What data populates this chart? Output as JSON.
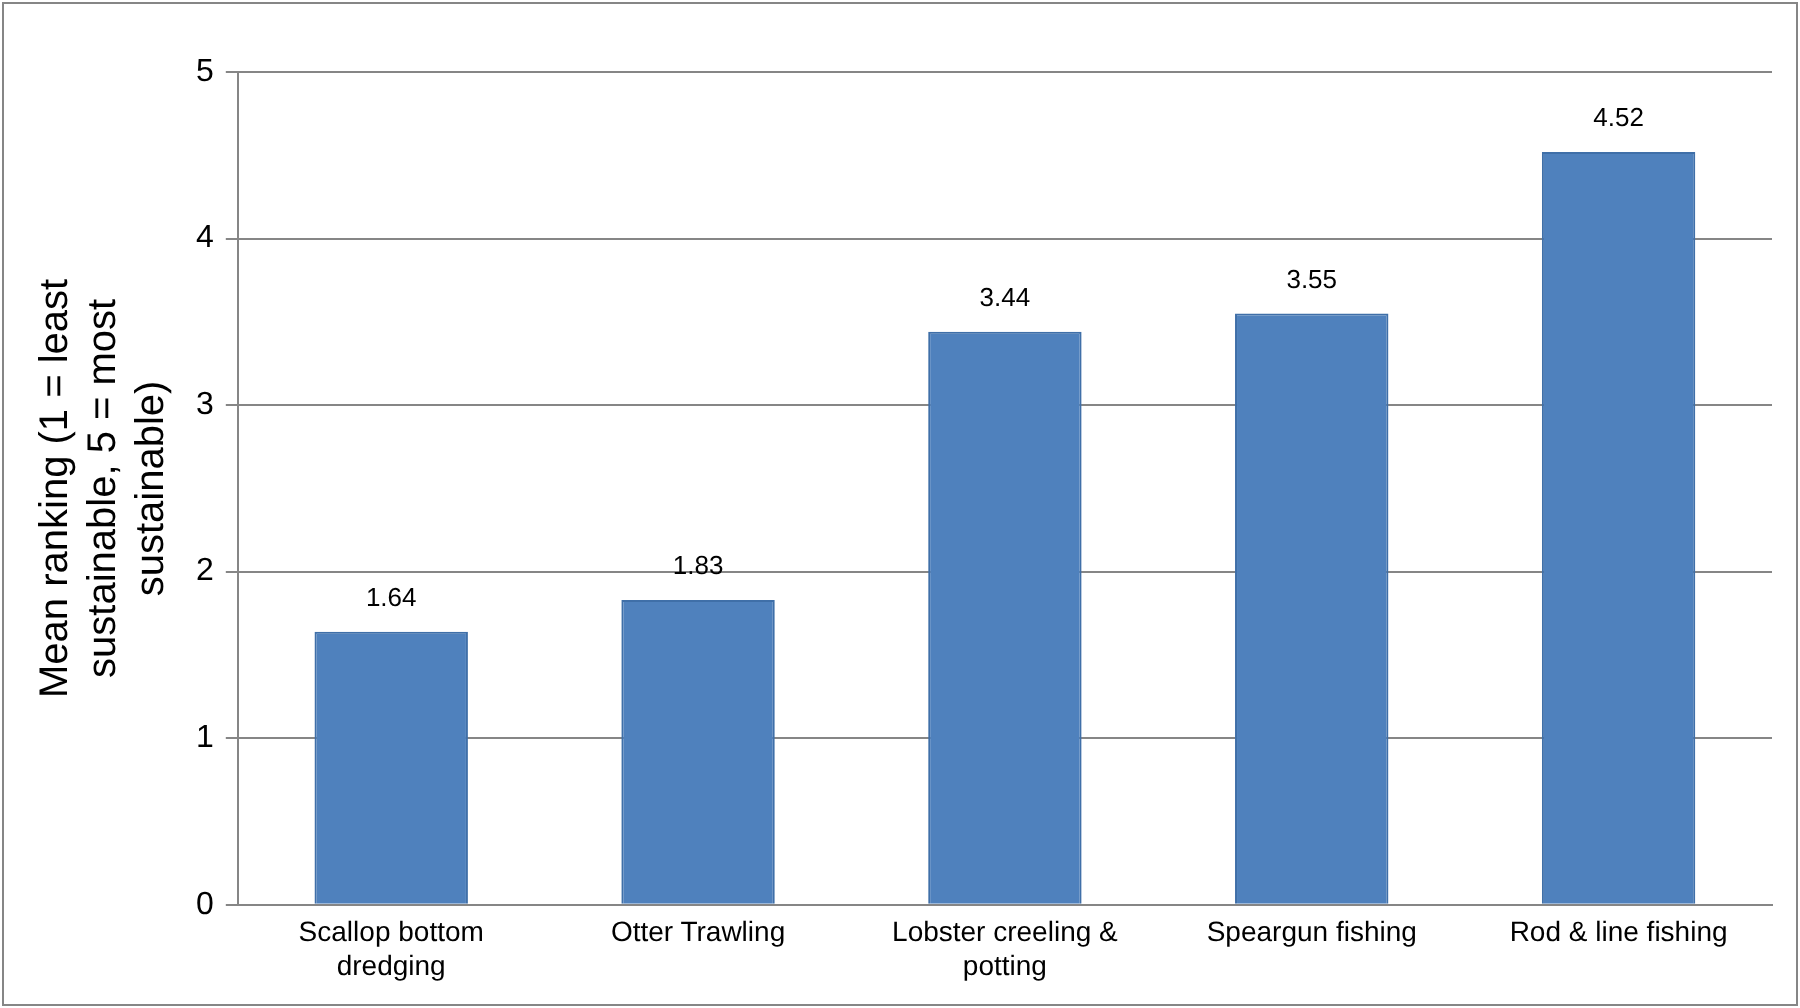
{
  "chart_data": {
    "type": "bar",
    "ylabel": "Mean ranking (1 = least sustainable, 5 = most sustainable)",
    "categories": [
      "Scallop bottom dredging",
      "Otter Trawling",
      "Lobster creeling & potting",
      "Speargun fishing",
      "Rod & line fishing"
    ],
    "values": [
      1.64,
      1.83,
      3.44,
      3.55,
      4.52
    ],
    "color": "#4f81bd",
    "ylim": [
      0,
      5
    ],
    "yticks": [
      0,
      1,
      2,
      3,
      4,
      5
    ],
    "grid": "y",
    "data_labels": true,
    "legend": false
  }
}
